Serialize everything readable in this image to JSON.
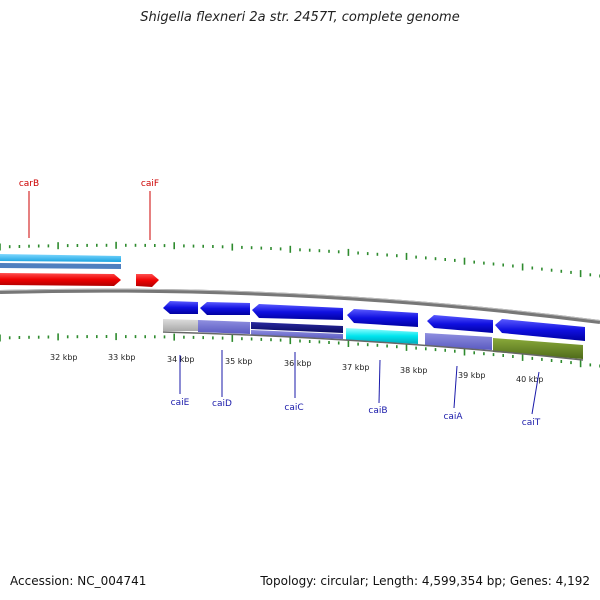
{
  "title": "Shigella flexneri 2a str. 2457T, complete genome",
  "footer": {
    "accession": "Accession: NC_004741",
    "summary": "Topology: circular; Length: 4,599,354 bp; Genes: 4,192"
  },
  "colors": {
    "tick": "#2e8b2e",
    "backbone": "#888888",
    "label_red": "#cc0000",
    "label_blue": "#1a1aaa"
  },
  "kbp_labels": [
    "32 kbp",
    "33 kbp",
    "34 kbp",
    "35 kbp",
    "36 kbp",
    "37 kbp",
    "38 kbp",
    "39 kbp",
    "40 kbp"
  ],
  "genes_top": [
    {
      "name": "carB",
      "color": "#cc0000"
    },
    {
      "name": "caiF",
      "color": "#cc0000"
    }
  ],
  "genes_bottom": [
    {
      "name": "caiE",
      "color": "#1a1aaa"
    },
    {
      "name": "caiD",
      "color": "#1a1aaa"
    },
    {
      "name": "caiC",
      "color": "#1a1aaa"
    },
    {
      "name": "caiB",
      "color": "#1a1aaa"
    },
    {
      "name": "caiA",
      "color": "#1a1aaa"
    },
    {
      "name": "caiT",
      "color": "#1a1aaa"
    }
  ]
}
